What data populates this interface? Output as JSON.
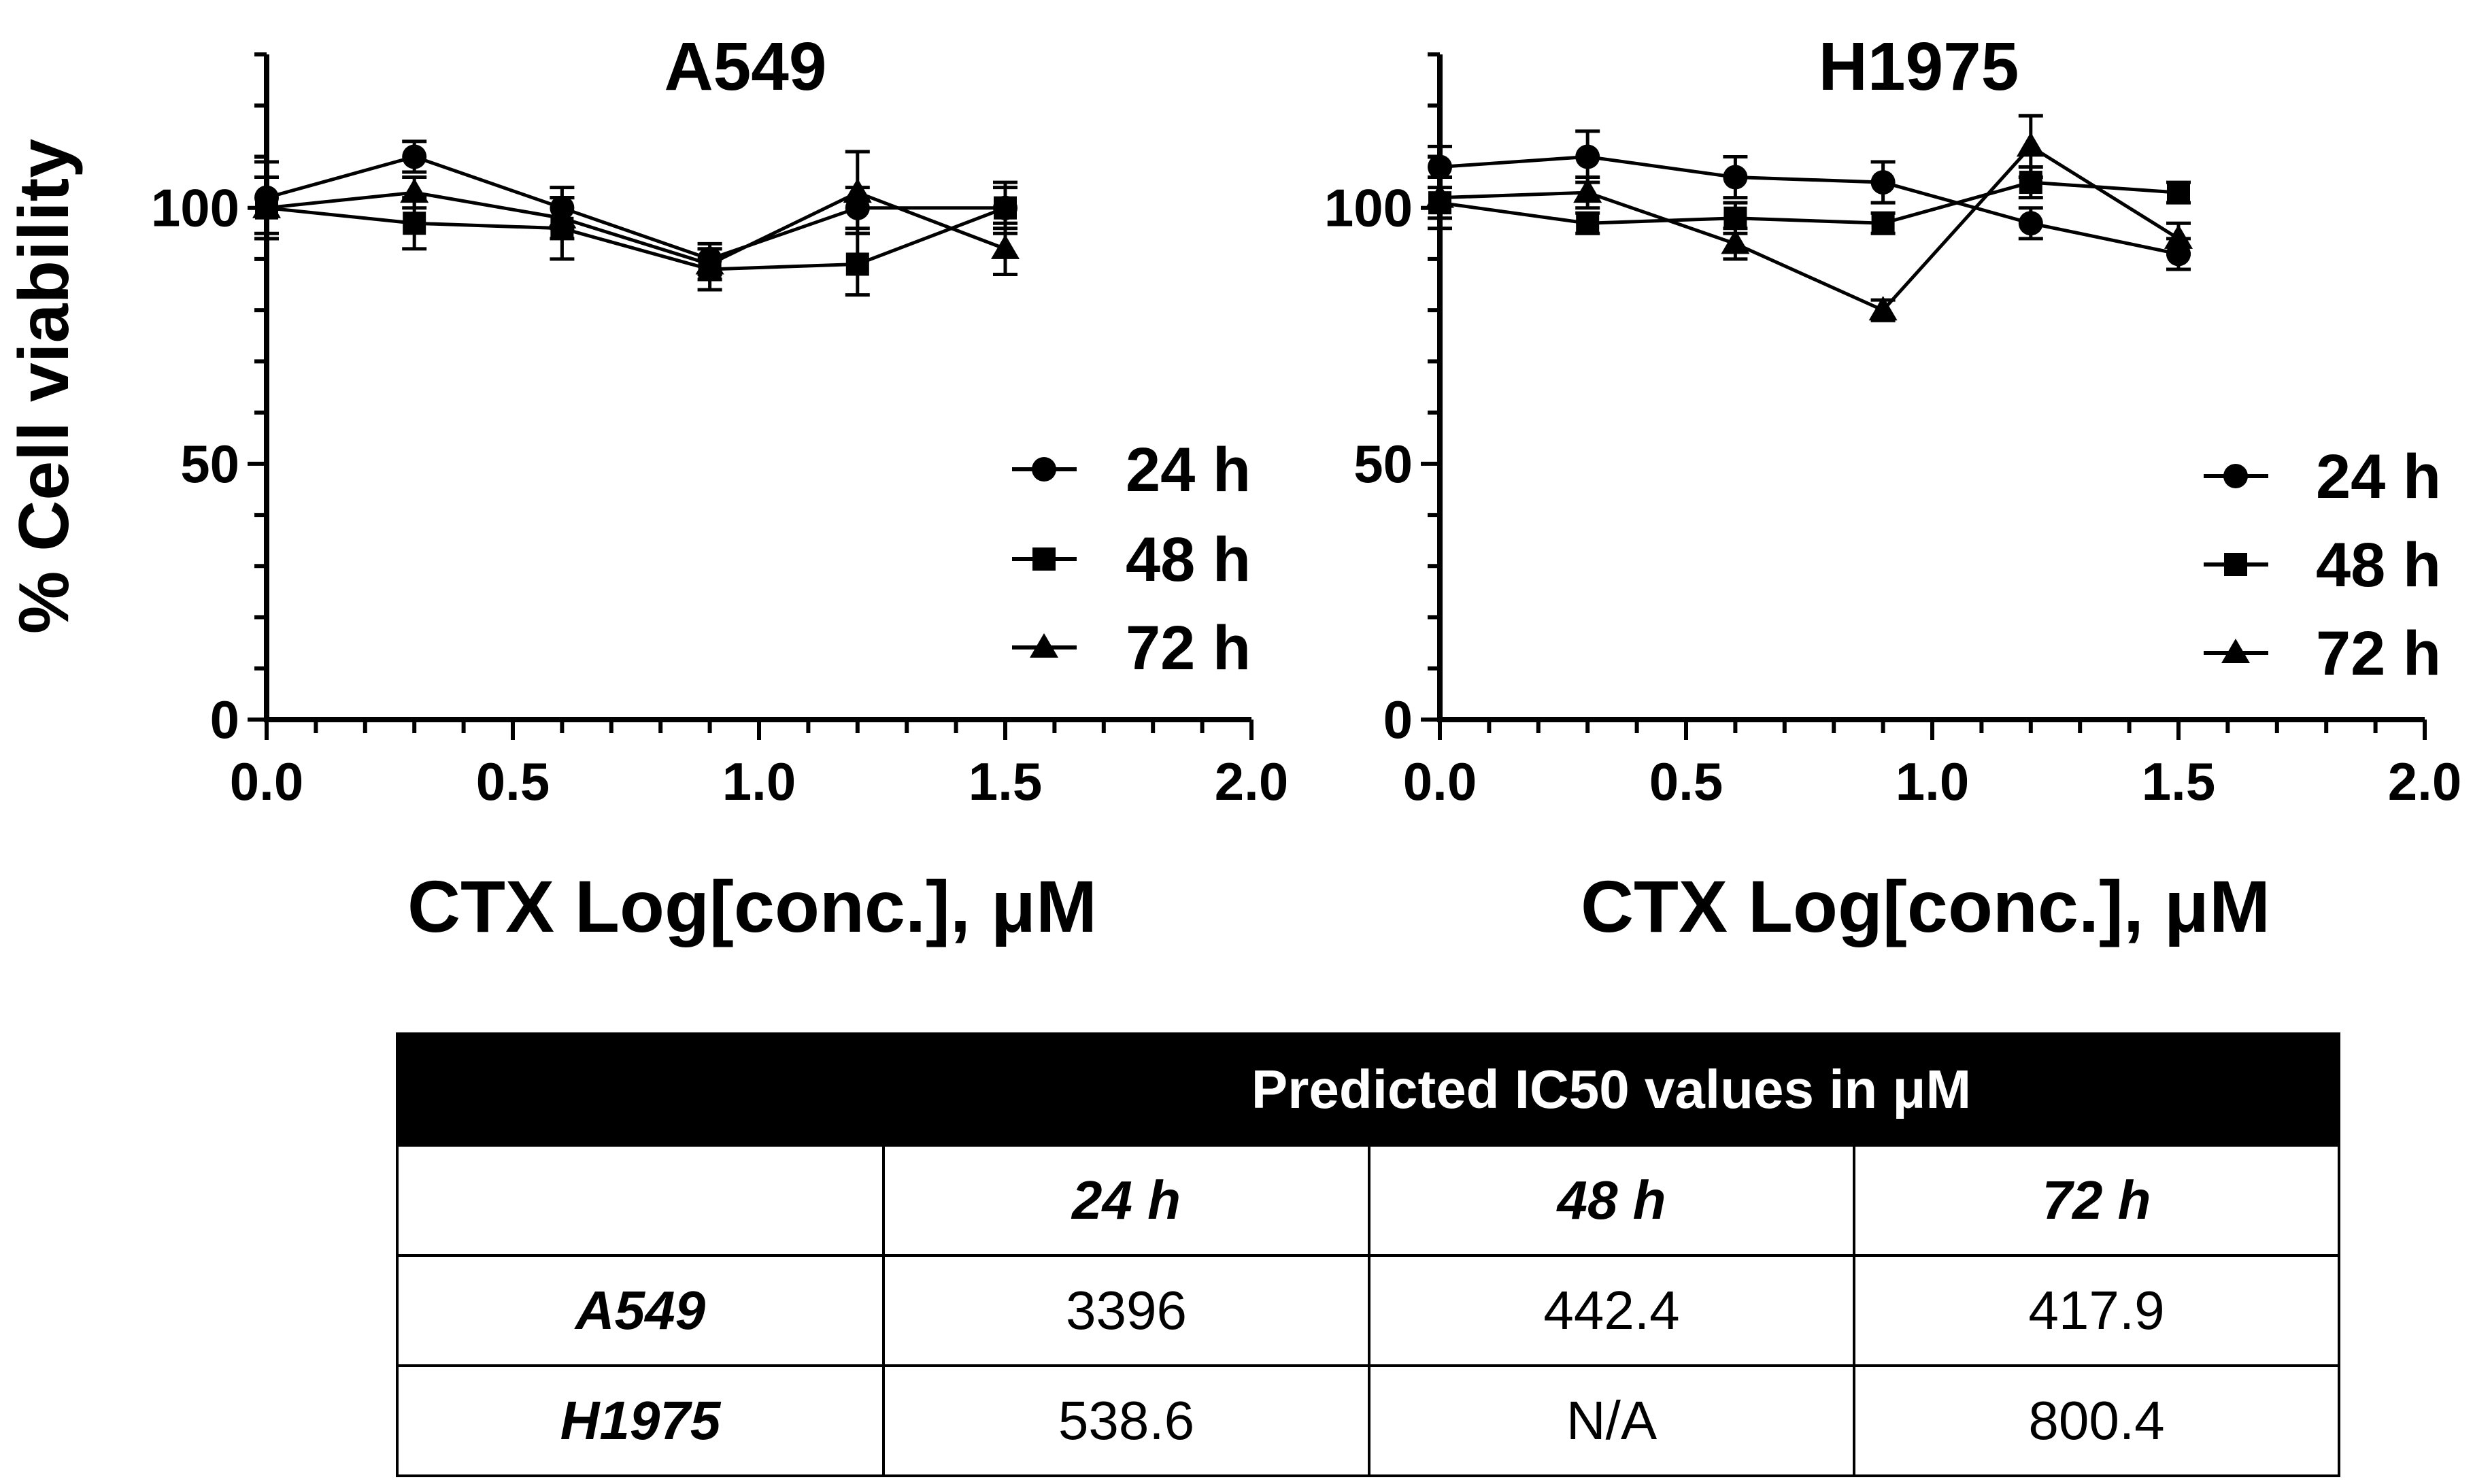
{
  "chart_data": [
    {
      "type": "line",
      "title": "A549",
      "xlabel": "CTX Log[conc.], μM",
      "ylabel": "% Cell viability",
      "xlim": [
        0,
        2
      ],
      "ylim": [
        0,
        130
      ],
      "xticks": [
        "0.0",
        "0.5",
        "1.0",
        "1.5",
        "2.0"
      ],
      "yticks": [
        "0",
        "50",
        "100"
      ],
      "legend_position": "right",
      "x": [
        0,
        0.3,
        0.6,
        0.9,
        1.2,
        1.5
      ],
      "series": [
        {
          "name": "24 h",
          "marker": "circle",
          "values": [
            102,
            110,
            100,
            90,
            100,
            100
          ],
          "errors": [
            7,
            3,
            4,
            3,
            4,
            4
          ]
        },
        {
          "name": "48 h",
          "marker": "square",
          "values": [
            100,
            97,
            96,
            88,
            89,
            100
          ],
          "errors": [
            6,
            5,
            6,
            4,
            6,
            5
          ]
        },
        {
          "name": "72 h",
          "marker": "triangle",
          "values": [
            100,
            103,
            98,
            89,
            103,
            92
          ],
          "errors": [
            6,
            3,
            4,
            3,
            8,
            5
          ]
        }
      ]
    },
    {
      "type": "line",
      "title": "H1975",
      "xlabel": "CTX Log[conc.], μM",
      "ylabel": "",
      "xlim": [
        0,
        2
      ],
      "ylim": [
        0,
        130
      ],
      "xticks": [
        "0.0",
        "0.5",
        "1.0",
        "1.5",
        "2.0"
      ],
      "yticks": [
        "0",
        "50",
        "100"
      ],
      "legend_position": "right",
      "x": [
        0,
        0.3,
        0.6,
        0.9,
        1.2,
        1.5
      ],
      "series": [
        {
          "name": "24 h",
          "marker": "circle",
          "values": [
            108,
            110,
            106,
            105,
            97,
            91
          ],
          "errors": [
            4,
            5,
            4,
            4,
            3,
            3
          ]
        },
        {
          "name": "48 h",
          "marker": "square",
          "values": [
            101,
            97,
            98,
            97,
            105,
            103
          ],
          "errors": [
            5,
            2,
            3,
            2,
            3,
            2
          ]
        },
        {
          "name": "72 h",
          "marker": "triangle",
          "values": [
            102,
            103,
            93,
            80,
            112,
            94
          ],
          "errors": [
            4,
            3,
            3,
            2,
            6,
            3
          ]
        }
      ]
    }
  ],
  "table": {
    "title": "Predicted IC50 values in μM",
    "columns": [
      "24 h",
      "48 h",
      "72 h"
    ],
    "rows": [
      {
        "label": "A549",
        "values": [
          "3396",
          "442.4",
          "417.9"
        ]
      },
      {
        "label": "H1975",
        "values": [
          "538.6",
          "N/A",
          "800.4"
        ]
      }
    ]
  }
}
